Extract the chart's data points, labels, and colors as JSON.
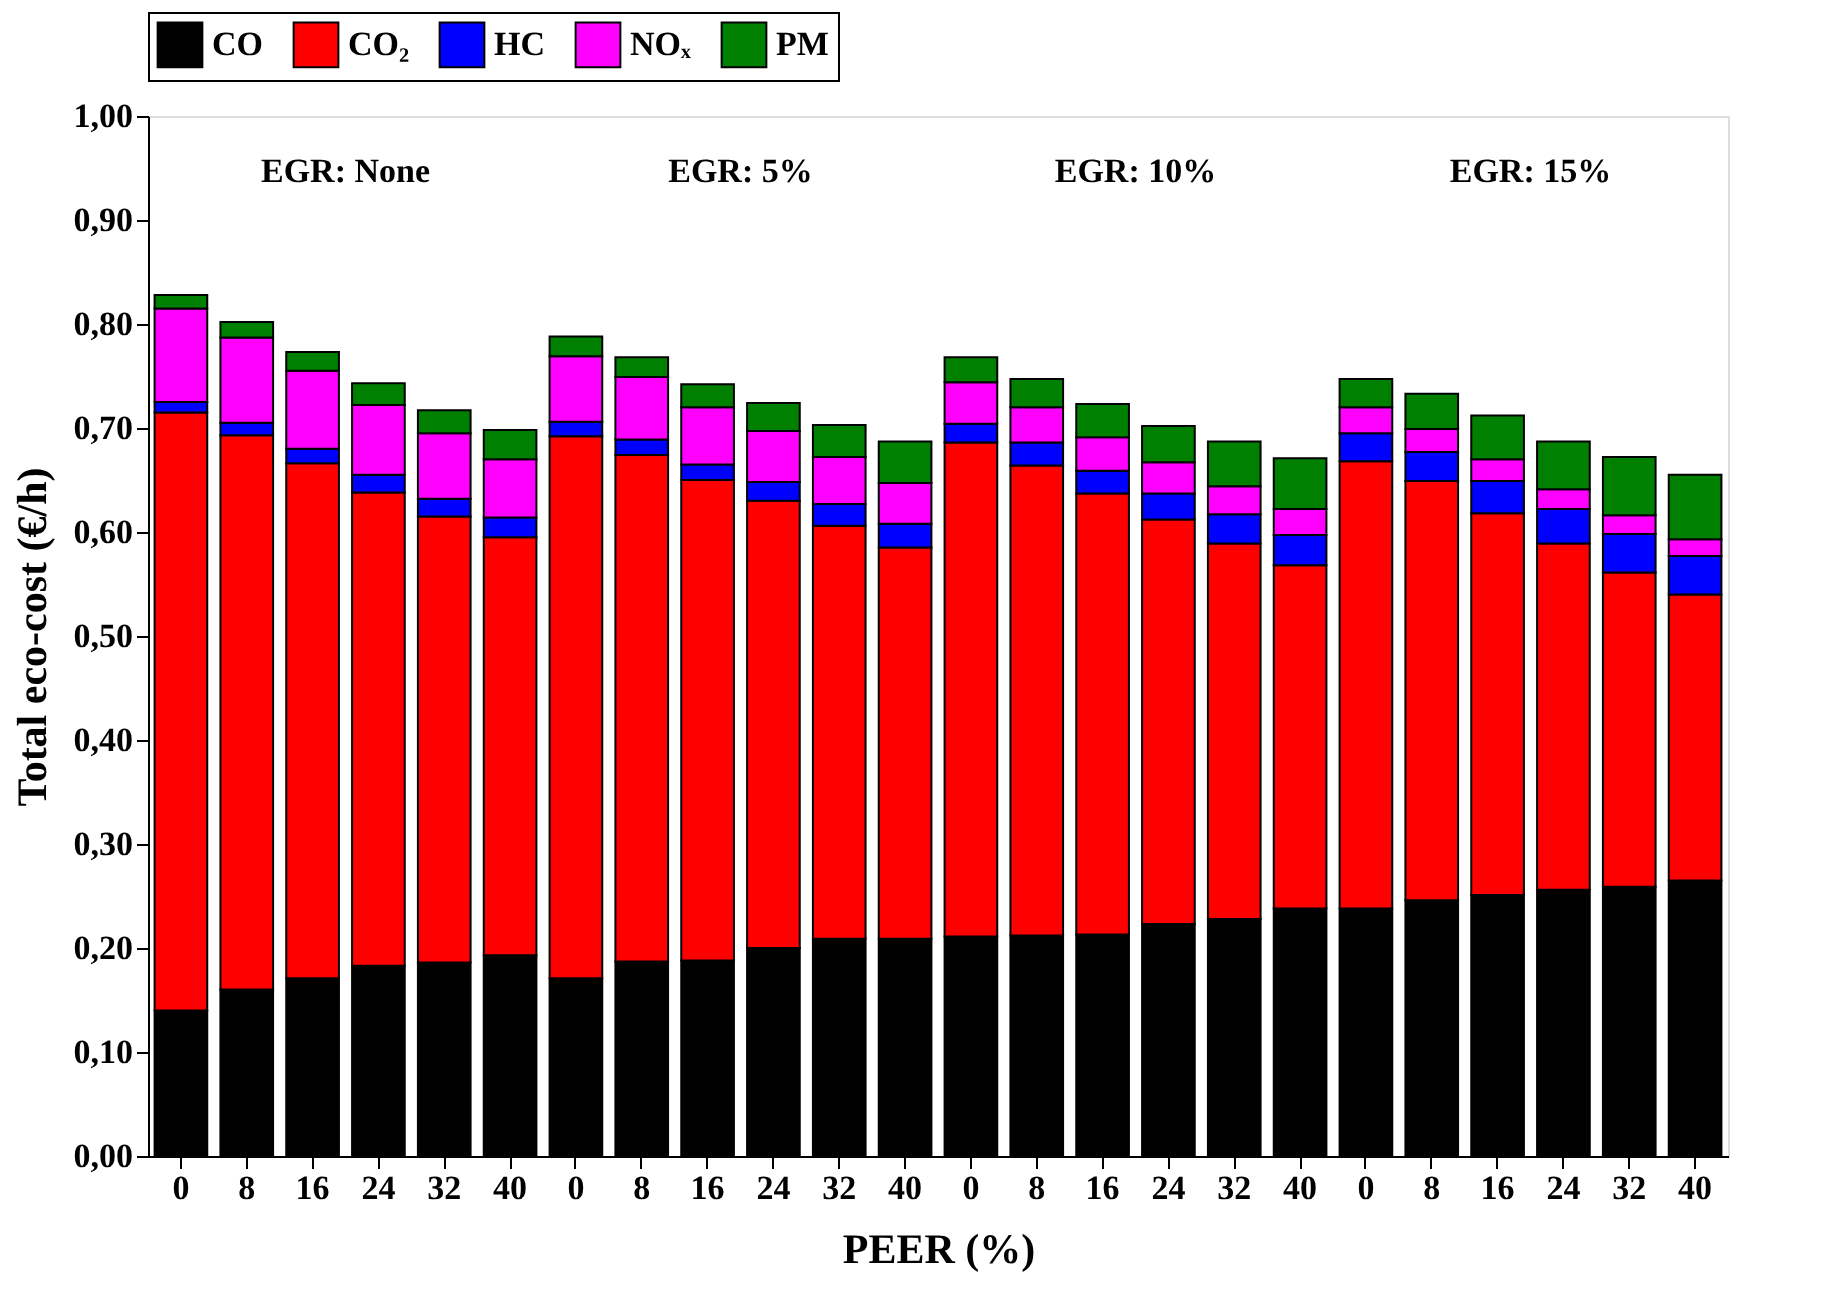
{
  "chart_data": {
    "type": "bar",
    "stacked": true,
    "xlabel": "PEER (%)",
    "ylabel": "Total eco-cost (€/h)",
    "categories": [
      "0",
      "8",
      "16",
      "24",
      "32",
      "40",
      "0",
      "8",
      "16",
      "24",
      "32",
      "40",
      "0",
      "8",
      "16",
      "24",
      "32",
      "40",
      "0",
      "8",
      "16",
      "24",
      "32",
      "40"
    ],
    "ylim": [
      0,
      1
    ],
    "yticks": [
      {
        "value": 0,
        "label": "0,00"
      },
      {
        "value": 0.1,
        "label": "0,10"
      },
      {
        "value": 0.2,
        "label": "0,20"
      },
      {
        "value": 0.3,
        "label": "0,30"
      },
      {
        "value": 0.4,
        "label": "0,40"
      },
      {
        "value": 0.5,
        "label": "0,50"
      },
      {
        "value": 0.6,
        "label": "0,60"
      },
      {
        "value": 0.7,
        "label": "0,70"
      },
      {
        "value": 0.8,
        "label": "0,80"
      },
      {
        "value": 0.9,
        "label": "0,90"
      },
      {
        "value": 1,
        "label": "1,00"
      }
    ],
    "series": [
      {
        "name": "CO",
        "color": "#000000",
        "values": [
          0.14,
          0.16,
          0.171,
          0.183,
          0.186,
          0.193,
          0.171,
          0.187,
          0.188,
          0.2,
          0.209,
          0.209,
          0.211,
          0.212,
          0.213,
          0.223,
          0.228,
          0.238,
          0.238,
          0.246,
          0.251,
          0.256,
          0.259,
          0.265
        ]
      },
      {
        "name": "CO₂",
        "color": "#ff0000",
        "values": [
          0.575,
          0.533,
          0.495,
          0.455,
          0.429,
          0.402,
          0.521,
          0.487,
          0.462,
          0.43,
          0.397,
          0.376,
          0.475,
          0.452,
          0.424,
          0.389,
          0.361,
          0.33,
          0.43,
          0.403,
          0.367,
          0.333,
          0.302,
          0.275
        ]
      },
      {
        "name": "HC",
        "color": "#0000ff",
        "values": [
          0.01,
          0.012,
          0.014,
          0.017,
          0.017,
          0.019,
          0.014,
          0.015,
          0.015,
          0.018,
          0.021,
          0.023,
          0.018,
          0.022,
          0.022,
          0.025,
          0.028,
          0.029,
          0.027,
          0.028,
          0.031,
          0.033,
          0.037,
          0.037
        ]
      },
      {
        "name": "NOₓ",
        "color": "#ff00ff",
        "values": [
          0.09,
          0.082,
          0.075,
          0.067,
          0.063,
          0.056,
          0.063,
          0.06,
          0.055,
          0.049,
          0.045,
          0.039,
          0.04,
          0.034,
          0.032,
          0.03,
          0.027,
          0.025,
          0.025,
          0.022,
          0.021,
          0.019,
          0.018,
          0.016
        ]
      },
      {
        "name": "PM",
        "color": "#008000",
        "values": [
          0.013,
          0.015,
          0.018,
          0.021,
          0.022,
          0.028,
          0.019,
          0.019,
          0.022,
          0.027,
          0.031,
          0.04,
          0.024,
          0.027,
          0.032,
          0.035,
          0.043,
          0.049,
          0.027,
          0.034,
          0.042,
          0.046,
          0.056,
          0.062
        ]
      }
    ],
    "annotations": [
      "EGR: None",
      "EGR: 5%",
      "EGR: 10%",
      "EGR: 15%"
    ],
    "legend": "top",
    "grid": false
  }
}
